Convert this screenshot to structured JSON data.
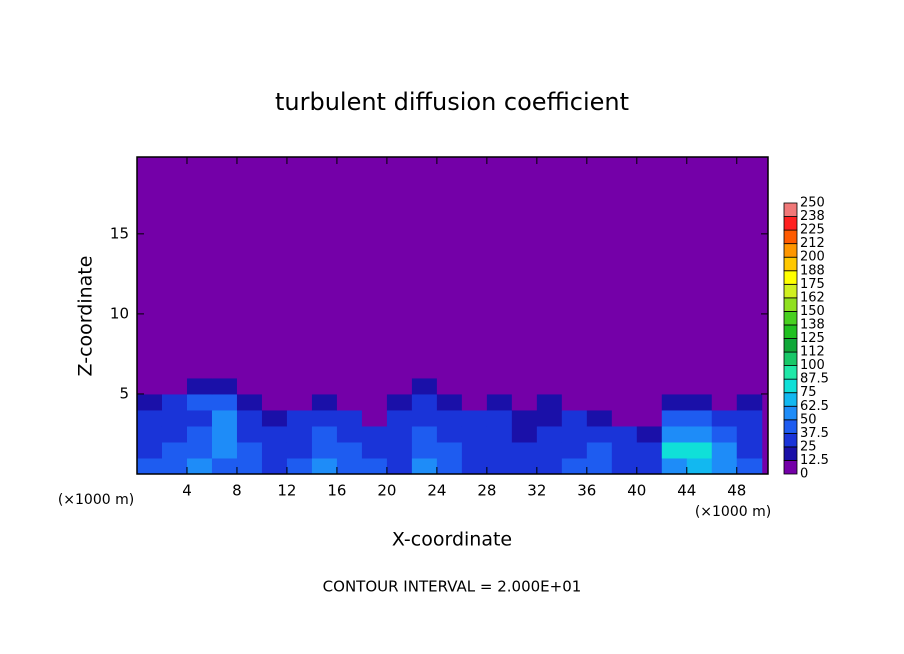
{
  "chart_data": {
    "type": "heatmap",
    "title": "turbulent diffusion coefficient",
    "x_label": "X-coordinate",
    "y_label": "Z-coordinate",
    "x_unit": "(×1000 m)",
    "footer": "CONTOUR INTERVAL = 2.000E+01",
    "xlim": [
      0,
      50.5
    ],
    "ylim": [
      0,
      19.8
    ],
    "xticks": [
      4,
      8,
      12,
      16,
      20,
      24,
      28,
      32,
      36,
      40,
      44,
      48
    ],
    "yticks": [
      5,
      10,
      15
    ],
    "x": [
      1,
      3,
      5,
      7,
      9,
      11,
      13,
      15,
      17,
      19,
      21,
      23,
      25,
      27,
      29,
      31,
      33,
      35,
      37,
      39,
      41,
      43,
      45,
      47,
      49
    ],
    "y": [
      0.5,
      1.5,
      2.5,
      3.5,
      4.5,
      5.5,
      6.5,
      7.5
    ],
    "z": [
      [
        40,
        45,
        50,
        45,
        40,
        35,
        40,
        50,
        45,
        40,
        30,
        50,
        45,
        35,
        30,
        25,
        35,
        40,
        45,
        30,
        25,
        60,
        70,
        55,
        40
      ],
      [
        35,
        40,
        45,
        50,
        40,
        30,
        35,
        45,
        40,
        35,
        30,
        45,
        40,
        35,
        30,
        25,
        30,
        35,
        40,
        30,
        25,
        75,
        80,
        50,
        35
      ],
      [
        30,
        35,
        40,
        60,
        35,
        25,
        30,
        40,
        35,
        30,
        30,
        40,
        35,
        30,
        30,
        20,
        25,
        30,
        35,
        25,
        20,
        60,
        60,
        45,
        30
      ],
      [
        25,
        30,
        35,
        55,
        30,
        15,
        25,
        30,
        25,
        10,
        25,
        35,
        30,
        25,
        25,
        20,
        20,
        25,
        15,
        10,
        10,
        40,
        45,
        35,
        30
      ],
      [
        20,
        25,
        45,
        40,
        15,
        5,
        10,
        20,
        5,
        0,
        15,
        25,
        20,
        10,
        15,
        10,
        15,
        10,
        0,
        0,
        0,
        15,
        20,
        10,
        20
      ],
      [
        5,
        5,
        15,
        20,
        0,
        0,
        0,
        0,
        0,
        0,
        5,
        15,
        10,
        0,
        0,
        0,
        0,
        0,
        0,
        0,
        0,
        0,
        0,
        0,
        0
      ],
      [
        0,
        0,
        0,
        10,
        0,
        0,
        0,
        0,
        0,
        0,
        0,
        5,
        0,
        0,
        0,
        0,
        0,
        0,
        0,
        0,
        0,
        0,
        0,
        0,
        0
      ],
      [
        0,
        0,
        0,
        0,
        0,
        0,
        0,
        0,
        0,
        0,
        0,
        0,
        0,
        0,
        0,
        0,
        0,
        0,
        0,
        0,
        0,
        0,
        0,
        0,
        0
      ]
    ],
    "levels": [
      0,
      12.5,
      25,
      37.5,
      50,
      62.5,
      75,
      87.5,
      100,
      112,
      125,
      138,
      150,
      162,
      175,
      188,
      200,
      212,
      225,
      238,
      250
    ],
    "colors": [
      "#7400a8",
      "#1a10a8",
      "#1a34d8",
      "#1e5cf0",
      "#1e8cf8",
      "#12b8f0",
      "#10e0d8",
      "#20e8a8",
      "#18c868",
      "#10a838",
      "#20c020",
      "#48d020",
      "#90e020",
      "#d0f020",
      "#ffff00",
      "#ffc800",
      "#ff9600",
      "#ff5a00",
      "#ff2020",
      "#f07878"
    ]
  }
}
